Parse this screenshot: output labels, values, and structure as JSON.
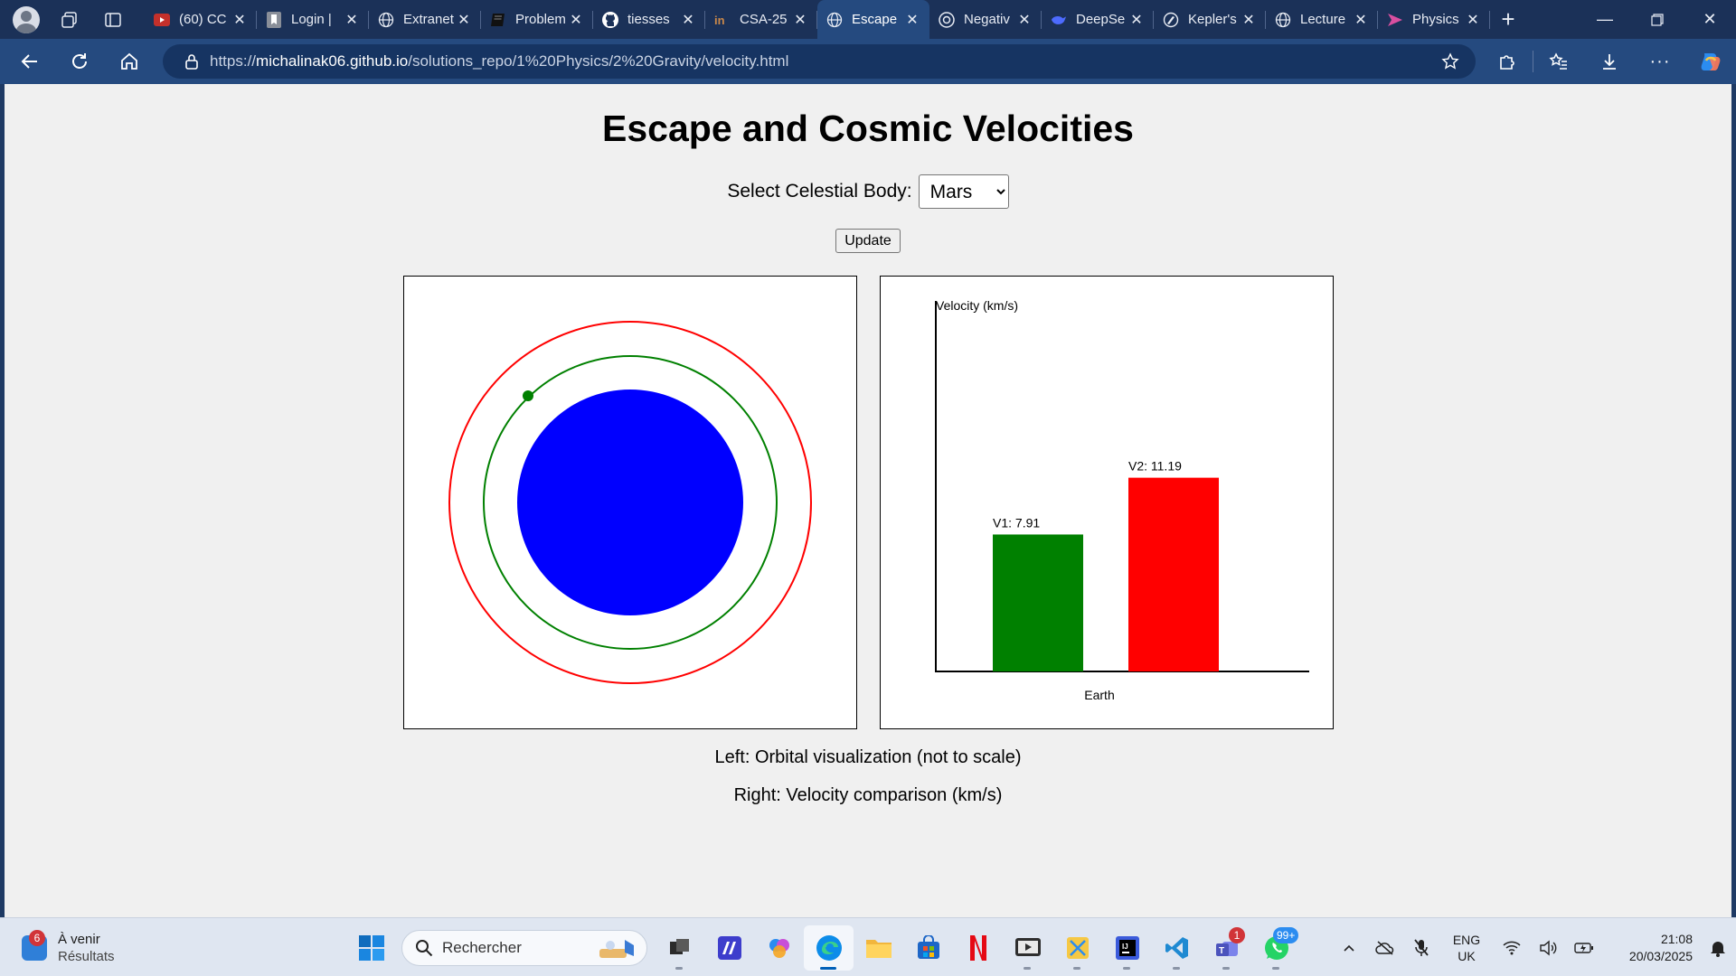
{
  "browser": {
    "tabs": [
      {
        "title": "(60) CC",
        "icon": "youtube-icon",
        "active": false
      },
      {
        "title": "Login |",
        "icon": "bookmark-icon",
        "active": false
      },
      {
        "title": "Extranet",
        "icon": "globe-icon",
        "active": false
      },
      {
        "title": "Problem",
        "icon": "book-icon",
        "active": false
      },
      {
        "title": "tiesses",
        "icon": "github-icon",
        "active": false
      },
      {
        "title": "CSA-25",
        "icon": "in-icon",
        "active": false
      },
      {
        "title": "Escape",
        "icon": "globe-icon",
        "active": true
      },
      {
        "title": "Negativ",
        "icon": "chatgpt-icon",
        "active": false
      },
      {
        "title": "DeepSe",
        "icon": "deepseek-icon",
        "active": false
      },
      {
        "title": "Kepler's",
        "icon": "edit-icon",
        "active": false
      },
      {
        "title": "Lecture",
        "icon": "globe-icon",
        "active": false
      },
      {
        "title": "Physics",
        "icon": "gemini-icon",
        "active": false
      }
    ],
    "url_prefix": "https://",
    "url_host": "michalinak06.github.io",
    "url_path": "/solutions_repo/1%20Physics/2%20Gravity/velocity.html"
  },
  "page": {
    "title": "Escape and Cosmic Velocities",
    "select_label": "Select Celestial Body:",
    "select_value": "Mars",
    "select_options": [
      "Mars"
    ],
    "update_label": "Update",
    "caption_left": "Left: Orbital visualization (not to scale)",
    "caption_right": "Right: Velocity comparison (km/s)"
  },
  "orbit_viz": {
    "planet_color": "#0000ff",
    "orbit1_color": "#008000",
    "orbit2_color": "#ff0000",
    "satellite_color": "#008000"
  },
  "chart_data": {
    "type": "bar",
    "title": "",
    "ylabel": "Velocity (km/s)",
    "xlabel": "Earth",
    "categories": [
      "V1",
      "V2"
    ],
    "values": [
      7.91,
      11.19
    ],
    "data_labels": [
      "V1: 7.91",
      "V2: 11.19"
    ],
    "colors": [
      "#008000",
      "#ff0000"
    ],
    "ylim": [
      0,
      21.4
    ]
  },
  "taskbar": {
    "weather_title": "À venir",
    "weather_sub": "Résultats",
    "weather_badge": "6",
    "search_placeholder": "Rechercher",
    "teams_badge": "1",
    "whatsapp_badge": "99+",
    "lang_line1": "ENG",
    "lang_line2": "UK",
    "time": "21:08",
    "date": "20/03/2025"
  }
}
